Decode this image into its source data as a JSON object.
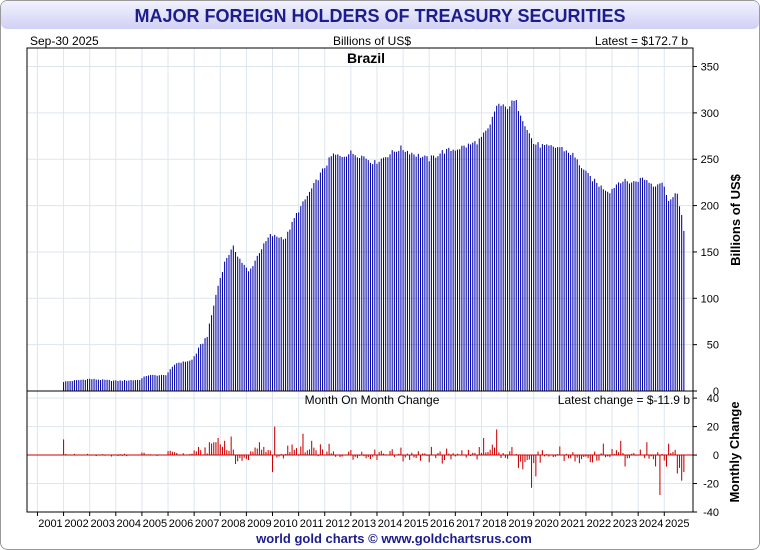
{
  "header": {
    "title": "MAJOR FOREIGN HOLDERS OF TREASURY SECURITIES",
    "date": "Sep-30  2025",
    "units": "Billions of US$",
    "latest": "Latest = $172.7 b"
  },
  "footer": {
    "credit": "world gold charts © www.goldchartsrus.com"
  },
  "colors": {
    "header_bg": "#e4e4ff",
    "title_text": "#1c1c8c",
    "panel_bg": "#ffffff",
    "holdings_bar": "#0000aa",
    "change_bar": "#cc0000",
    "grid": "#dde6ee",
    "axis": "#000000"
  },
  "chart_data": [
    {
      "type": "bar",
      "title": "Brazil",
      "xlabel": "",
      "ylabel": "Billions of US$",
      "x_range": [
        2000.6,
        2026.1
      ],
      "ylim": [
        0,
        370
      ],
      "yticks": [
        0,
        50,
        100,
        150,
        200,
        250,
        300,
        350
      ],
      "grid": true,
      "monthly": true,
      "start": 2002.0,
      "anchors": [
        [
          2002.0,
          10
        ],
        [
          2003.0,
          13
        ],
        [
          2004.0,
          11
        ],
        [
          2004.9,
          12
        ],
        [
          2005.2,
          17
        ],
        [
          2005.9,
          17
        ],
        [
          2006.3,
          30
        ],
        [
          2006.9,
          33
        ],
        [
          2007.5,
          60
        ],
        [
          2007.9,
          112
        ],
        [
          2008.2,
          142
        ],
        [
          2008.5,
          155
        ],
        [
          2008.8,
          140
        ],
        [
          2009.1,
          128
        ],
        [
          2009.5,
          150
        ],
        [
          2009.9,
          168
        ],
        [
          2010.5,
          165
        ],
        [
          2010.9,
          190
        ],
        [
          2011.5,
          218
        ],
        [
          2011.9,
          237
        ],
        [
          2012.3,
          255
        ],
        [
          2012.6,
          253
        ],
        [
          2013.0,
          257
        ],
        [
          2013.5,
          253
        ],
        [
          2013.9,
          246
        ],
        [
          2014.5,
          256
        ],
        [
          2014.9,
          262
        ],
        [
          2015.5,
          255
        ],
        [
          2016.0,
          250
        ],
        [
          2016.5,
          258
        ],
        [
          2017.0,
          261
        ],
        [
          2017.5,
          265
        ],
        [
          2017.9,
          270
        ],
        [
          2018.3,
          283
        ],
        [
          2018.6,
          310
        ],
        [
          2018.9,
          305
        ],
        [
          2019.3,
          313
        ],
        [
          2019.6,
          293
        ],
        [
          2020.0,
          267
        ],
        [
          2020.5,
          263
        ],
        [
          2021.0,
          263
        ],
        [
          2021.5,
          255
        ],
        [
          2022.0,
          235
        ],
        [
          2022.5,
          222
        ],
        [
          2022.9,
          215
        ],
        [
          2023.3,
          227
        ],
        [
          2023.8,
          225
        ],
        [
          2024.2,
          230
        ],
        [
          2024.6,
          222
        ],
        [
          2024.9,
          226
        ],
        [
          2025.2,
          205
        ],
        [
          2025.5,
          213
        ],
        [
          2025.7,
          185
        ],
        [
          2025.75,
          172.7
        ]
      ]
    },
    {
      "type": "bar",
      "title": "Month On Month Change",
      "xlabel": "",
      "ylabel": "Monthly Change",
      "latest_change": "Latest change = $-11.9 b",
      "ylim": [
        -40,
        45
      ],
      "yticks": [
        40,
        20,
        0,
        -20,
        -40
      ],
      "grid": true,
      "spikes": [
        [
          2002.0,
          11
        ],
        [
          2007.9,
          12
        ],
        [
          2008.2,
          10
        ],
        [
          2008.4,
          13
        ],
        [
          2009.5,
          9
        ],
        [
          2010.0,
          -12
        ],
        [
          2010.1,
          20
        ],
        [
          2011.2,
          15
        ],
        [
          2011.5,
          10
        ],
        [
          2016.5,
          -6
        ],
        [
          2018.6,
          18
        ],
        [
          2018.1,
          12
        ],
        [
          2019.6,
          -10
        ],
        [
          2019.9,
          -23
        ],
        [
          2020.1,
          -15
        ],
        [
          2021.0,
          6
        ],
        [
          2022.2,
          -5
        ],
        [
          2022.7,
          8
        ],
        [
          2023.3,
          10
        ],
        [
          2023.5,
          -8
        ],
        [
          2024.3,
          9
        ],
        [
          2024.7,
          -8
        ],
        [
          2024.8,
          -28
        ],
        [
          2025.2,
          8
        ],
        [
          2025.5,
          -13
        ],
        [
          2025.7,
          -18
        ],
        [
          2025.75,
          -11.9
        ]
      ]
    }
  ],
  "x_axis": {
    "labels": [
      "2001",
      "2002",
      "2003",
      "2004",
      "2005",
      "2006",
      "2007",
      "2008",
      "2009",
      "2010",
      "2011",
      "2012",
      "2013",
      "2014",
      "2015",
      "2016",
      "2017",
      "2018",
      "2019",
      "2020",
      "2021",
      "2022",
      "2023",
      "2024",
      "2025"
    ]
  }
}
